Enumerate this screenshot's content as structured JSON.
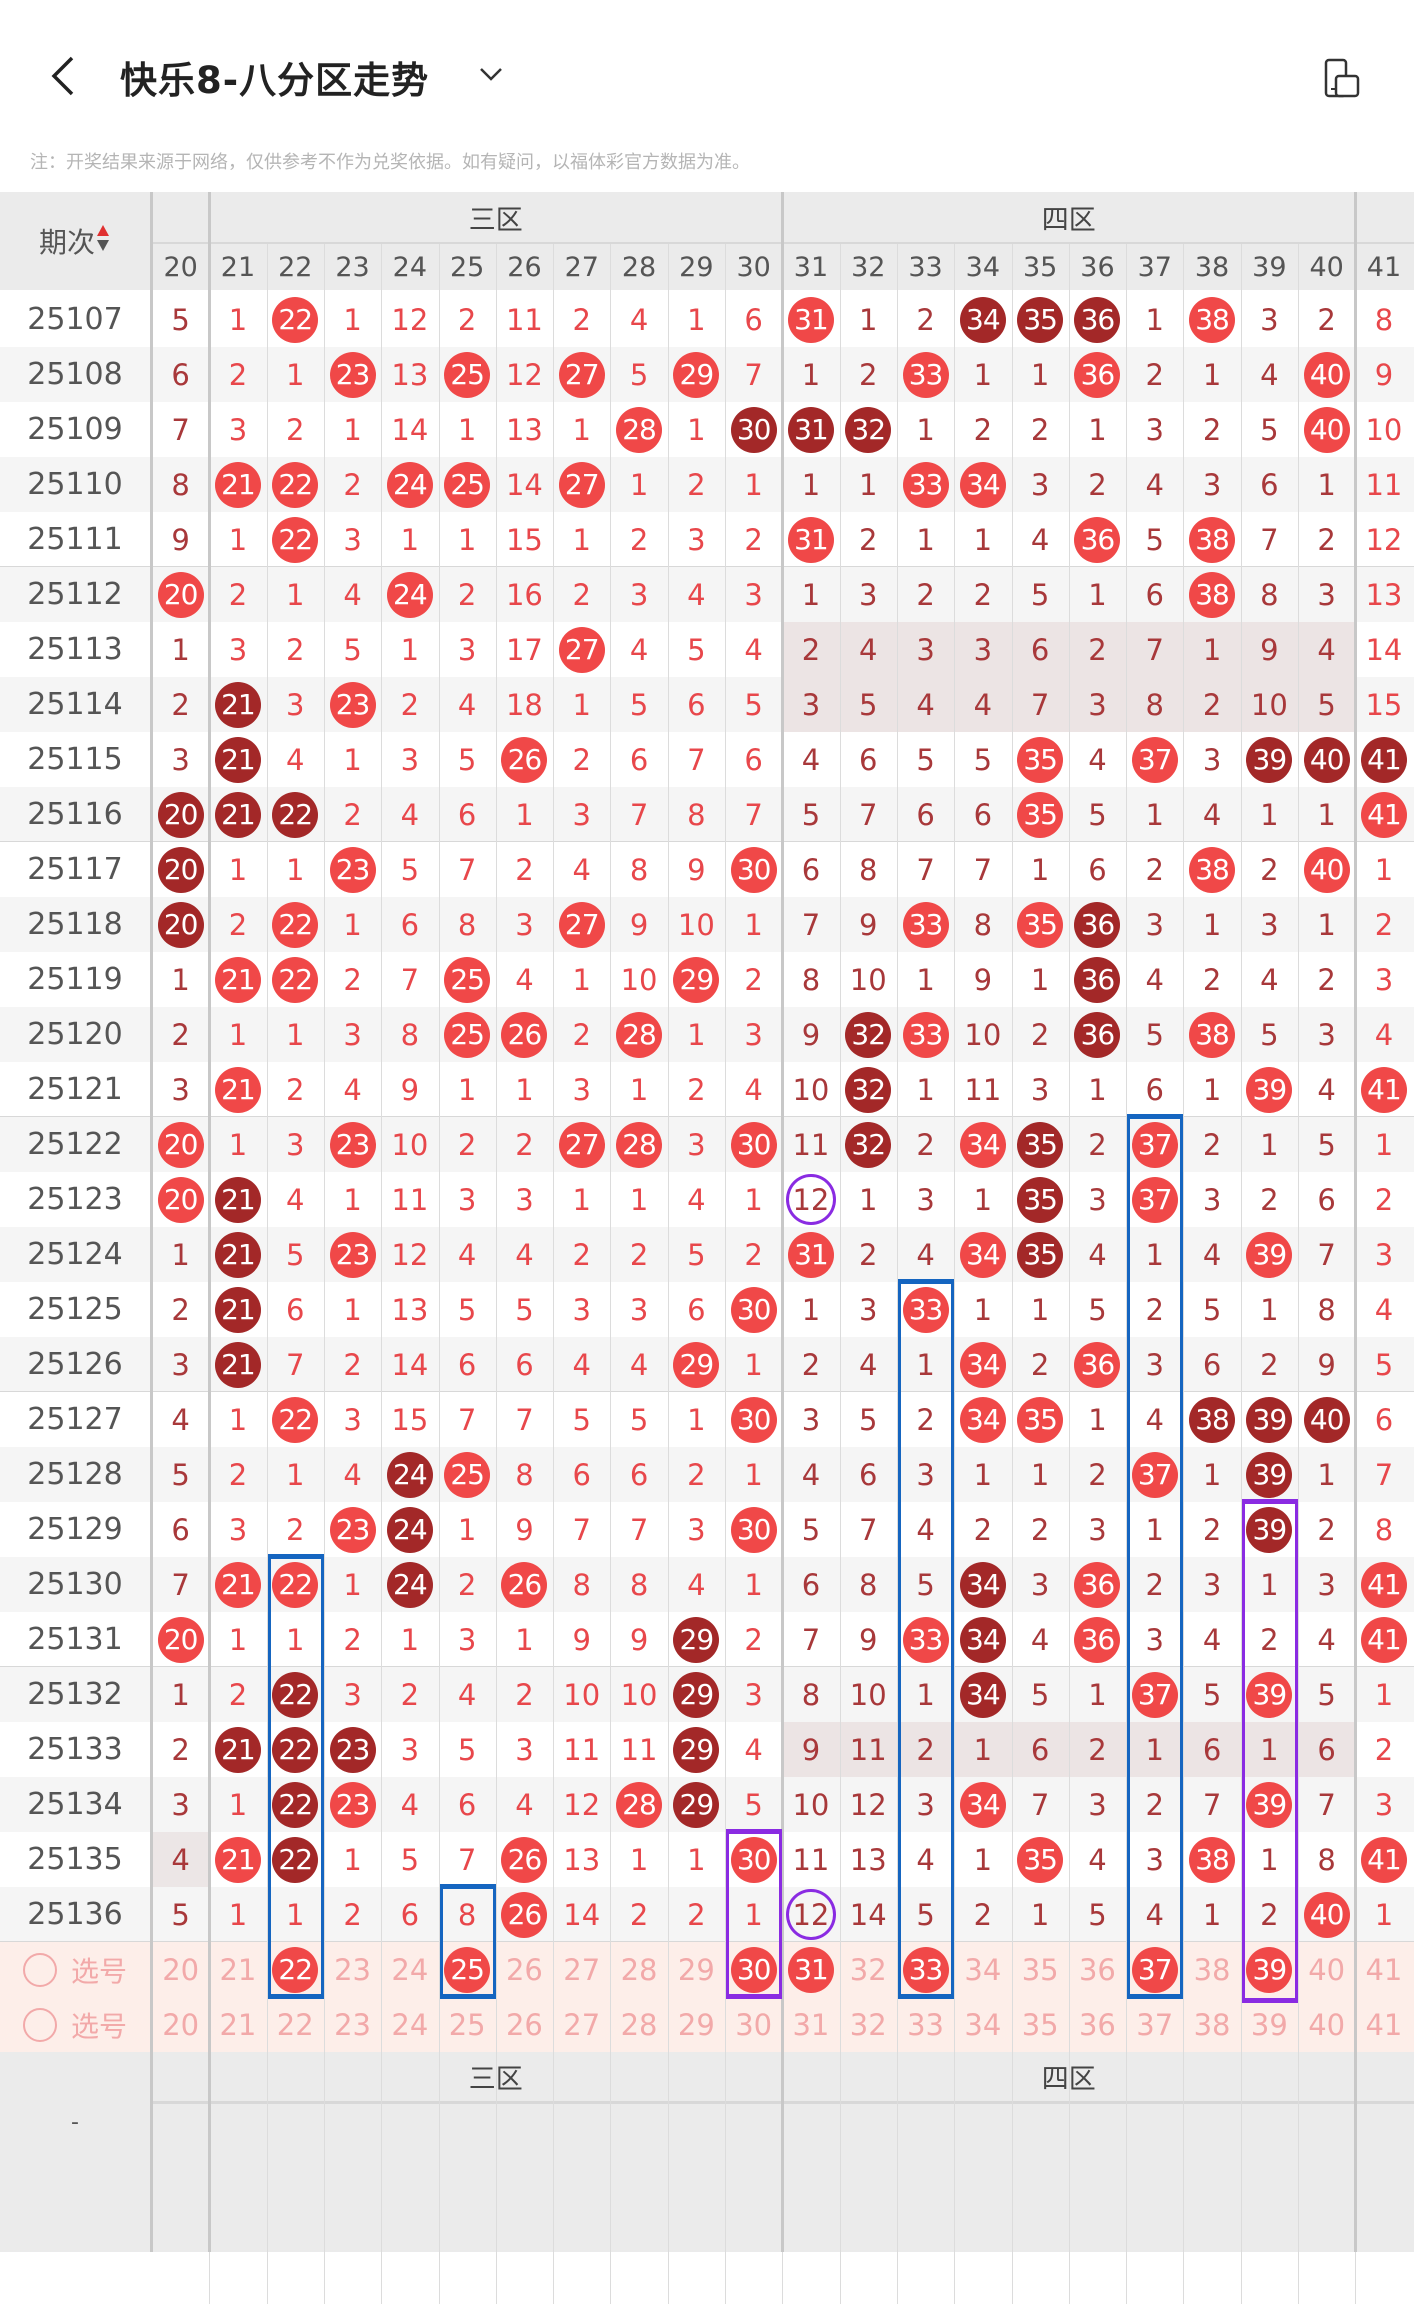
{
  "header": {
    "title": "快乐8-八分区走势",
    "back_icon": "back-arrow-icon",
    "dropdown_icon": "chevron-down-icon",
    "right_icon": "screen-rotate-icon"
  },
  "notice": "注：开奖结果来源于网络，仅供参考不作为兑奖依据。如有疑问，以福体彩官方数据为准。",
  "colors": {
    "hit_ball": "#f04848",
    "repeat_ball": "#a32828",
    "text_bright": "#e8474b",
    "text_dark": "#a8383a",
    "select_text": "#f2a9a9",
    "select_bg": "#fdeee9",
    "blue_box": "#1565c0",
    "purple_box": "#8a2be2"
  },
  "table": {
    "period_header": "期次",
    "sort_icon": "sort-updown-icon",
    "zones": [
      {
        "label": "三区",
        "columns": [
          21,
          30
        ]
      },
      {
        "label": "四区",
        "columns": [
          31,
          40
        ]
      }
    ],
    "columns": [
      20,
      21,
      22,
      23,
      24,
      25,
      26,
      27,
      28,
      29,
      30,
      31,
      32,
      33,
      34,
      35,
      36,
      37,
      38,
      39,
      40,
      41
    ],
    "rows": [
      {
        "period": "25107",
        "values": [
          5,
          1,
          22,
          1,
          12,
          2,
          11,
          2,
          4,
          1,
          6,
          31,
          1,
          2,
          34,
          35,
          36,
          1,
          38,
          3,
          2,
          8
        ],
        "hits": [
          22,
          31,
          34,
          35,
          36,
          38
        ],
        "dark": [
          34,
          35,
          36
        ]
      },
      {
        "period": "25108",
        "values": [
          6,
          2,
          1,
          23,
          13,
          25,
          12,
          27,
          5,
          29,
          7,
          1,
          2,
          33,
          1,
          1,
          36,
          2,
          1,
          4,
          40,
          9
        ],
        "hits": [
          23,
          25,
          27,
          29,
          33,
          36,
          40
        ],
        "dark": []
      },
      {
        "period": "25109",
        "values": [
          7,
          3,
          2,
          1,
          14,
          1,
          13,
          1,
          28,
          1,
          30,
          31,
          32,
          1,
          2,
          2,
          1,
          3,
          2,
          5,
          40,
          10
        ],
        "hits": [
          28,
          30,
          31,
          32,
          40
        ],
        "dark": [
          30,
          31,
          32
        ]
      },
      {
        "period": "25110",
        "values": [
          8,
          21,
          22,
          2,
          24,
          25,
          14,
          27,
          1,
          2,
          1,
          1,
          1,
          33,
          34,
          3,
          2,
          4,
          3,
          6,
          1,
          11
        ],
        "hits": [
          21,
          22,
          24,
          25,
          27,
          33,
          34
        ],
        "dark": []
      },
      {
        "period": "25111",
        "values": [
          9,
          1,
          22,
          3,
          1,
          1,
          15,
          1,
          2,
          3,
          2,
          31,
          2,
          1,
          1,
          4,
          36,
          5,
          38,
          7,
          2,
          12
        ],
        "hits": [
          22,
          31,
          36,
          38
        ],
        "dark": []
      },
      {
        "period": "25112",
        "values": [
          20,
          2,
          1,
          4,
          24,
          2,
          16,
          2,
          3,
          4,
          3,
          1,
          3,
          2,
          2,
          5,
          1,
          6,
          38,
          8,
          3,
          13
        ],
        "hits": [
          20,
          24,
          38
        ],
        "dark": []
      },
      {
        "period": "25113",
        "values": [
          1,
          3,
          2,
          5,
          1,
          3,
          17,
          27,
          4,
          5,
          4,
          2,
          4,
          3,
          3,
          6,
          2,
          7,
          1,
          9,
          4,
          14
        ],
        "hits": [
          27
        ],
        "dark": [],
        "shaded_zone": "四区"
      },
      {
        "period": "25114",
        "values": [
          2,
          21,
          3,
          23,
          2,
          4,
          18,
          1,
          5,
          6,
          5,
          3,
          5,
          4,
          4,
          7,
          3,
          8,
          2,
          10,
          5,
          15
        ],
        "hits": [
          21,
          23
        ],
        "dark": [
          21
        ],
        "shaded_zone": "四区"
      },
      {
        "period": "25115",
        "values": [
          3,
          21,
          4,
          1,
          3,
          5,
          26,
          2,
          6,
          7,
          6,
          4,
          6,
          5,
          5,
          35,
          4,
          37,
          3,
          39,
          40,
          41
        ],
        "hits": [
          21,
          26,
          35,
          37,
          39,
          40,
          41
        ],
        "dark": [
          21,
          39,
          40,
          41
        ]
      },
      {
        "period": "25116",
        "values": [
          20,
          21,
          22,
          2,
          4,
          6,
          1,
          3,
          7,
          8,
          7,
          5,
          7,
          6,
          6,
          35,
          5,
          1,
          4,
          1,
          1,
          41
        ],
        "hits": [
          20,
          21,
          22,
          35,
          41
        ],
        "dark": [
          20,
          21,
          22
        ]
      },
      {
        "period": "25117",
        "values": [
          20,
          1,
          1,
          23,
          5,
          7,
          2,
          4,
          8,
          9,
          30,
          6,
          8,
          7,
          7,
          1,
          6,
          2,
          38,
          2,
          40,
          1
        ],
        "hits": [
          20,
          23,
          30,
          38,
          40
        ],
        "dark": [
          20
        ]
      },
      {
        "period": "25118",
        "values": [
          20,
          2,
          22,
          1,
          6,
          8,
          3,
          27,
          9,
          10,
          1,
          7,
          9,
          33,
          8,
          35,
          36,
          3,
          1,
          3,
          1,
          2
        ],
        "hits": [
          20,
          22,
          27,
          33,
          35,
          36
        ],
        "dark": [
          20,
          36
        ]
      },
      {
        "period": "25119",
        "values": [
          1,
          21,
          22,
          2,
          7,
          25,
          4,
          1,
          10,
          29,
          2,
          8,
          10,
          1,
          9,
          1,
          36,
          4,
          2,
          4,
          2,
          3
        ],
        "hits": [
          21,
          22,
          25,
          29,
          36
        ],
        "dark": [
          36
        ]
      },
      {
        "period": "25120",
        "values": [
          2,
          1,
          1,
          3,
          8,
          25,
          26,
          2,
          28,
          1,
          3,
          9,
          32,
          33,
          10,
          2,
          36,
          5,
          38,
          5,
          3,
          4
        ],
        "hits": [
          25,
          26,
          28,
          32,
          33,
          36,
          38
        ],
        "dark": [
          32,
          36
        ]
      },
      {
        "period": "25121",
        "values": [
          3,
          21,
          2,
          4,
          9,
          1,
          1,
          3,
          1,
          2,
          4,
          10,
          32,
          1,
          11,
          3,
          1,
          6,
          1,
          39,
          4,
          41
        ],
        "hits": [
          21,
          32,
          39,
          41
        ],
        "dark": [
          32
        ]
      },
      {
        "period": "25122",
        "values": [
          20,
          1,
          3,
          23,
          10,
          2,
          2,
          27,
          28,
          3,
          30,
          11,
          32,
          2,
          34,
          35,
          2,
          37,
          2,
          1,
          5,
          1
        ],
        "hits": [
          20,
          23,
          27,
          28,
          30,
          32,
          34,
          35,
          37
        ],
        "dark": [
          32,
          35
        ]
      },
      {
        "period": "25123",
        "values": [
          20,
          21,
          4,
          1,
          11,
          3,
          3,
          1,
          1,
          4,
          1,
          12,
          1,
          3,
          1,
          35,
          3,
          37,
          3,
          2,
          6,
          2
        ],
        "hits": [
          20,
          21,
          35,
          37
        ],
        "dark": [
          21,
          35
        ],
        "circled": [
          31
        ]
      },
      {
        "period": "25124",
        "values": [
          1,
          21,
          5,
          23,
          12,
          4,
          4,
          2,
          2,
          5,
          2,
          31,
          2,
          4,
          34,
          35,
          4,
          1,
          4,
          39,
          7,
          3
        ],
        "hits": [
          21,
          23,
          31,
          34,
          35,
          39
        ],
        "dark": [
          21,
          35
        ]
      },
      {
        "period": "25125",
        "values": [
          2,
          21,
          6,
          1,
          13,
          5,
          5,
          3,
          3,
          6,
          30,
          1,
          3,
          33,
          1,
          1,
          5,
          2,
          5,
          1,
          8,
          4
        ],
        "hits": [
          21,
          30,
          33
        ],
        "dark": [
          21
        ]
      },
      {
        "period": "25126",
        "values": [
          3,
          21,
          7,
          2,
          14,
          6,
          6,
          4,
          4,
          29,
          1,
          2,
          4,
          1,
          34,
          2,
          36,
          3,
          6,
          2,
          9,
          5
        ],
        "hits": [
          21,
          29,
          34,
          36
        ],
        "dark": [
          21
        ]
      },
      {
        "period": "25127",
        "values": [
          4,
          1,
          22,
          3,
          15,
          7,
          7,
          5,
          5,
          1,
          30,
          3,
          5,
          2,
          34,
          35,
          1,
          4,
          38,
          39,
          40,
          6
        ],
        "hits": [
          22,
          30,
          34,
          35,
          38,
          39,
          40
        ],
        "dark": [
          38,
          39,
          40
        ]
      },
      {
        "period": "25128",
        "values": [
          5,
          2,
          1,
          4,
          24,
          25,
          8,
          6,
          6,
          2,
          1,
          4,
          6,
          3,
          1,
          1,
          2,
          37,
          1,
          39,
          1,
          7
        ],
        "hits": [
          24,
          25,
          37,
          39
        ],
        "dark": [
          24,
          39
        ]
      },
      {
        "period": "25129",
        "values": [
          6,
          3,
          2,
          23,
          24,
          1,
          9,
          7,
          7,
          3,
          30,
          5,
          7,
          4,
          2,
          2,
          3,
          1,
          2,
          39,
          2,
          8
        ],
        "hits": [
          23,
          24,
          30,
          39
        ],
        "dark": [
          24,
          39
        ]
      },
      {
        "period": "25130",
        "values": [
          7,
          21,
          22,
          1,
          24,
          2,
          26,
          8,
          8,
          4,
          1,
          6,
          8,
          5,
          34,
          3,
          36,
          2,
          3,
          1,
          3,
          41
        ],
        "hits": [
          21,
          22,
          24,
          26,
          34,
          36,
          41
        ],
        "dark": [
          24,
          34
        ]
      },
      {
        "period": "25131",
        "values": [
          20,
          1,
          1,
          2,
          1,
          3,
          1,
          9,
          9,
          29,
          2,
          7,
          9,
          33,
          34,
          4,
          36,
          3,
          4,
          2,
          4,
          41
        ],
        "hits": [
          20,
          29,
          33,
          34,
          36,
          41
        ],
        "dark": [
          29,
          34
        ]
      },
      {
        "period": "25132",
        "values": [
          1,
          2,
          22,
          3,
          2,
          4,
          2,
          10,
          10,
          29,
          3,
          8,
          10,
          1,
          34,
          5,
          1,
          37,
          5,
          39,
          5,
          1
        ],
        "hits": [
          22,
          29,
          34,
          37,
          39
        ],
        "dark": [
          22,
          29,
          34
        ]
      },
      {
        "period": "25133",
        "values": [
          2,
          21,
          22,
          23,
          3,
          5,
          3,
          11,
          11,
          29,
          4,
          9,
          11,
          2,
          1,
          6,
          2,
          1,
          6,
          1,
          6,
          2
        ],
        "hits": [
          21,
          22,
          23,
          29
        ],
        "dark": [
          21,
          22,
          23,
          29
        ],
        "shaded_zone": "四区"
      },
      {
        "period": "25134",
        "values": [
          3,
          1,
          22,
          23,
          4,
          6,
          4,
          12,
          28,
          29,
          5,
          10,
          12,
          3,
          34,
          7,
          3,
          2,
          7,
          39,
          7,
          3
        ],
        "hits": [
          22,
          23,
          28,
          29,
          34,
          39
        ],
        "dark": [
          22,
          29
        ]
      },
      {
        "period": "25135",
        "values": [
          4,
          21,
          22,
          1,
          5,
          7,
          26,
          13,
          1,
          1,
          30,
          11,
          13,
          4,
          1,
          35,
          4,
          3,
          38,
          1,
          8,
          41
        ],
        "hits": [
          21,
          22,
          26,
          30,
          35,
          38,
          41
        ],
        "dark": [
          22
        ],
        "shaded_cols": [
          20
        ]
      },
      {
        "period": "25136",
        "values": [
          5,
          1,
          1,
          2,
          6,
          8,
          26,
          14,
          2,
          2,
          1,
          12,
          14,
          5,
          2,
          1,
          5,
          4,
          1,
          2,
          40,
          1
        ],
        "hits": [
          26,
          40
        ],
        "dark": [],
        "circled": [
          31
        ]
      }
    ],
    "select_rows": [
      {
        "label": "选号",
        "radio_checked": false,
        "selected": [
          22,
          25,
          30,
          31,
          33,
          37,
          39
        ]
      },
      {
        "label": "选号",
        "radio_checked": false,
        "selected": []
      }
    ],
    "footer": {
      "period_label": "-",
      "zones": [
        {
          "label": "三区"
        },
        {
          "label": "四区"
        }
      ]
    }
  },
  "annotations": {
    "boxes": [
      {
        "color": "blue",
        "column": 22,
        "from": "25130",
        "to": "选号"
      },
      {
        "color": "blue",
        "column": 25,
        "from": "25136",
        "to": "选号"
      },
      {
        "color": "blue",
        "column": 33,
        "from": "25125",
        "to": "选号"
      },
      {
        "color": "blue",
        "column": 37,
        "from": "25122",
        "to": "选号"
      },
      {
        "color": "purple",
        "column": 30,
        "from": "25135",
        "to": "选号"
      },
      {
        "color": "purple",
        "column": 39,
        "from": "25129",
        "to": "选号"
      }
    ]
  }
}
